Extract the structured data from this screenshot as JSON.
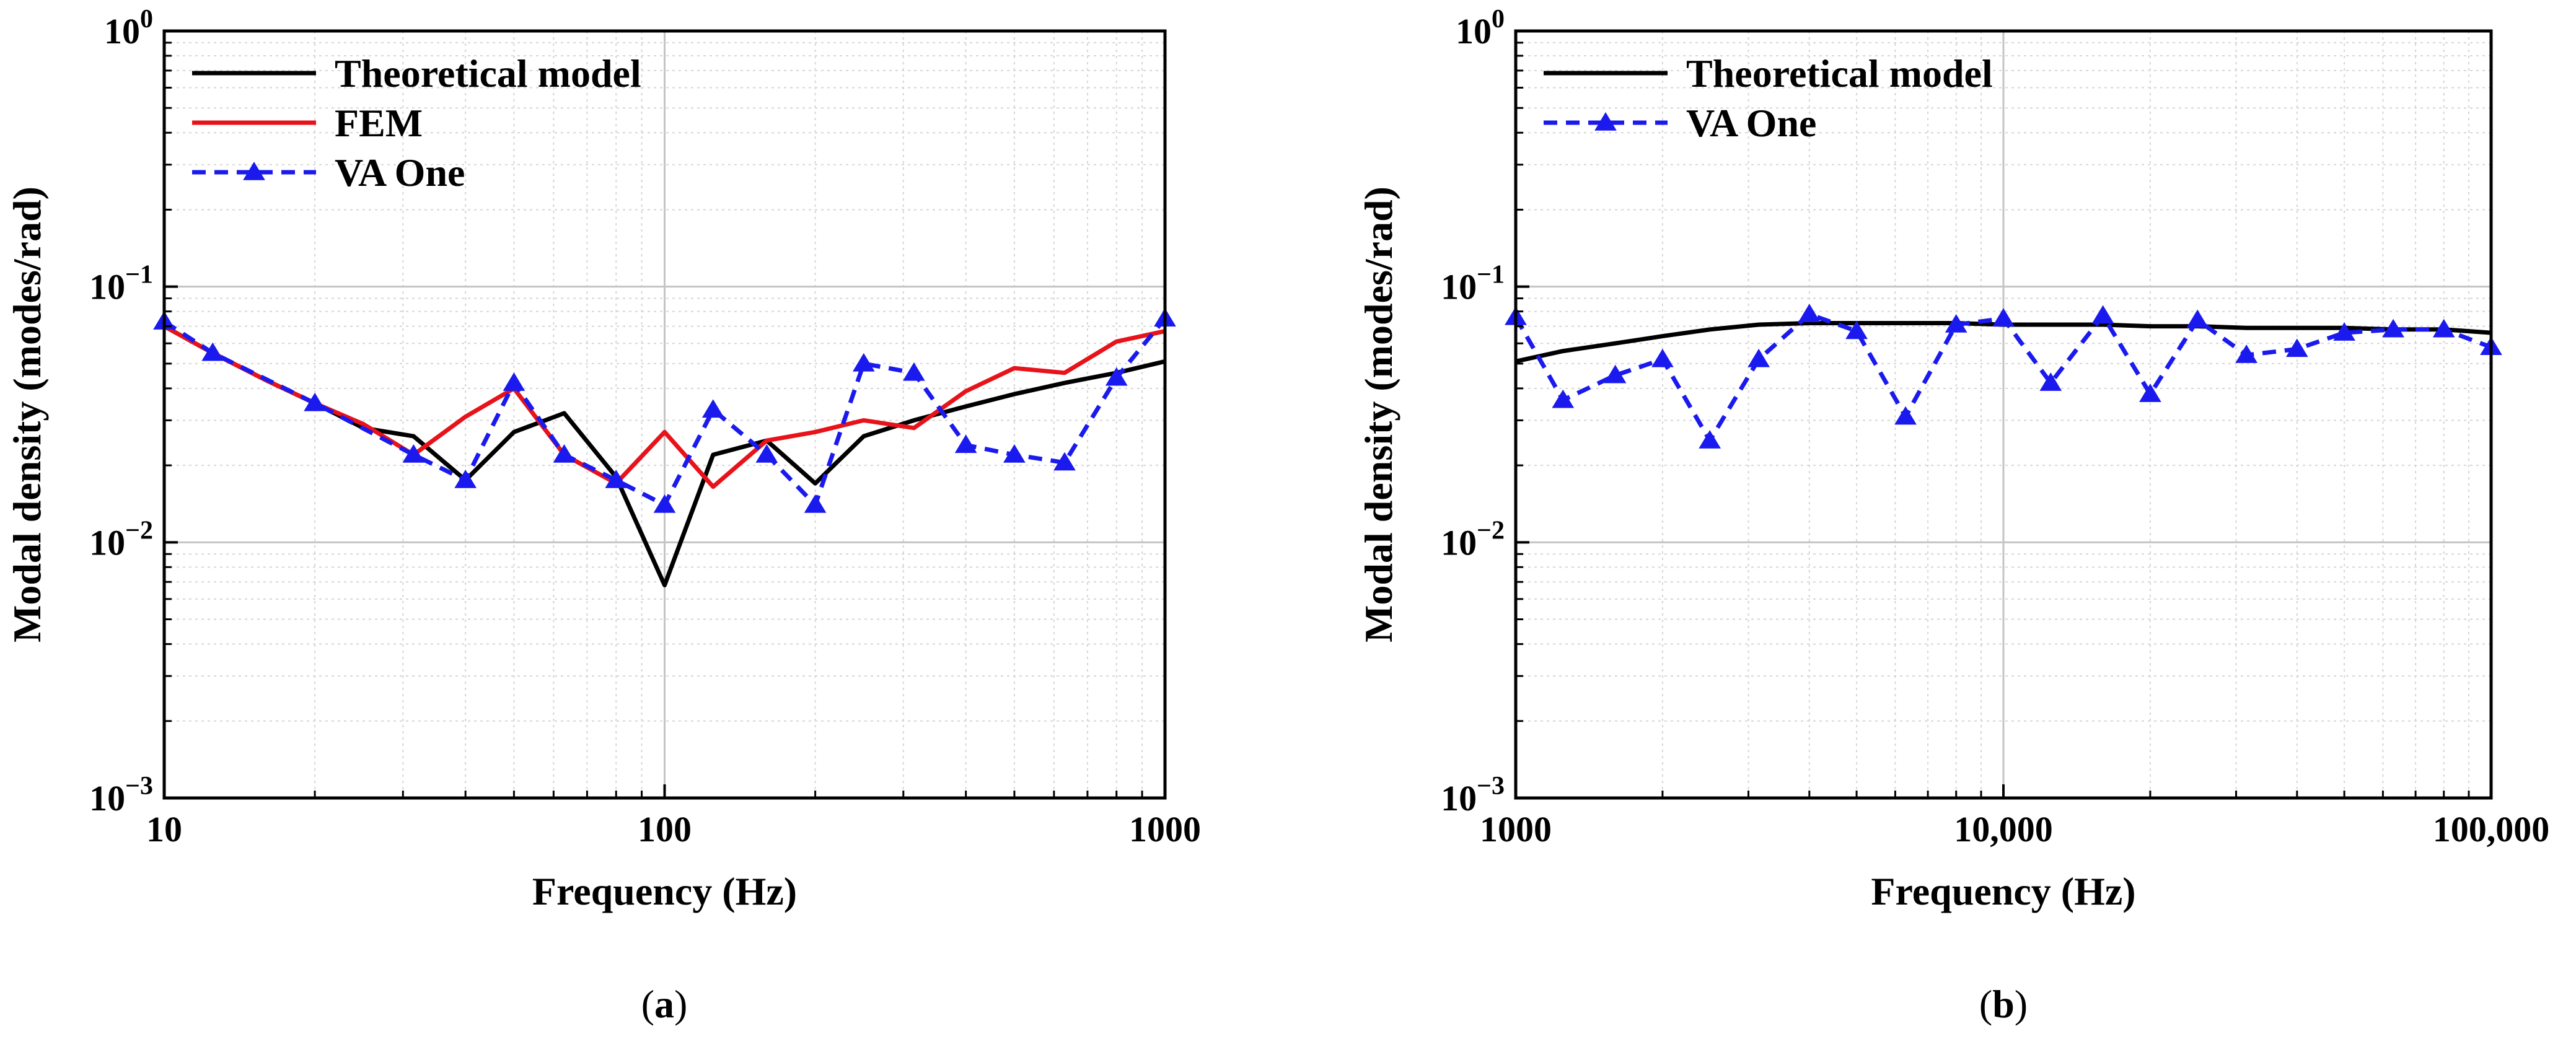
{
  "chart_data": [
    {
      "type": "line",
      "panel_label": "a",
      "xscale": "log",
      "yscale": "log",
      "xlim": [
        10,
        1000
      ],
      "ylim": [
        0.001,
        1
      ],
      "xlabel": "Frequency (Hz)",
      "ylabel": "Modal density (modes/rad)",
      "x_ticks": [
        {
          "value": 10,
          "label": "10"
        },
        {
          "value": 100,
          "label": "100"
        },
        {
          "value": 1000,
          "label": "1000"
        }
      ],
      "y_ticks": [
        {
          "value": 0.001,
          "base": "10",
          "exp": "−3"
        },
        {
          "value": 0.01,
          "base": "10",
          "exp": "−2"
        },
        {
          "value": 0.1,
          "base": "10",
          "exp": "−1"
        },
        {
          "value": 1,
          "base": "10",
          "exp": "0"
        }
      ],
      "grid": true,
      "legend_position": "top-left",
      "series": [
        {
          "name": "Theoretical model",
          "color": "#000000",
          "dash": "solid",
          "marker": "none",
          "x": [
            10,
            12.5,
            16,
            20,
            25,
            31.5,
            40,
            50,
            63,
            80,
            100,
            125,
            160,
            200,
            250,
            315,
            400,
            500,
            630,
            800,
            1000
          ],
          "y": [
            0.07,
            0.055,
            0.043,
            0.035,
            0.028,
            0.026,
            0.0175,
            0.027,
            0.032,
            0.018,
            0.0068,
            0.022,
            0.025,
            0.017,
            0.026,
            0.03,
            0.034,
            0.038,
            0.042,
            0.046,
            0.051
          ]
        },
        {
          "name": "FEM",
          "color": "#e8121a",
          "dash": "solid",
          "marker": "none",
          "x": [
            10,
            12.5,
            16,
            20,
            25,
            31.5,
            40,
            50,
            63,
            80,
            100,
            125,
            160,
            200,
            250,
            315,
            400,
            500,
            630,
            800,
            1000
          ],
          "y": [
            0.07,
            0.055,
            0.043,
            0.035,
            0.029,
            0.022,
            0.031,
            0.04,
            0.022,
            0.017,
            0.027,
            0.0165,
            0.025,
            0.027,
            0.03,
            0.028,
            0.039,
            0.048,
            0.046,
            0.061,
            0.067
          ]
        },
        {
          "name": "VA One",
          "color": "#1a1aee",
          "dash": "dashed",
          "marker": "triangle",
          "x": [
            10,
            12.5,
            20,
            31.5,
            40,
            50,
            63,
            80,
            100,
            125,
            160,
            200,
            250,
            315,
            400,
            500,
            630,
            800,
            1000
          ],
          "y": [
            0.073,
            0.055,
            0.035,
            0.022,
            0.0175,
            0.042,
            0.022,
            0.0175,
            0.014,
            0.033,
            0.022,
            0.014,
            0.05,
            0.046,
            0.024,
            0.022,
            0.0205,
            0.044,
            0.075
          ]
        }
      ]
    },
    {
      "type": "line",
      "panel_label": "b",
      "xscale": "log",
      "yscale": "log",
      "xlim": [
        1000,
        100000
      ],
      "ylim": [
        0.001,
        1
      ],
      "xlabel": "Frequency (Hz)",
      "ylabel": "Modal density (modes/rad)",
      "x_ticks": [
        {
          "value": 1000,
          "label": "1000"
        },
        {
          "value": 10000,
          "label": "10,000"
        },
        {
          "value": 100000,
          "label": "100,000"
        }
      ],
      "y_ticks": [
        {
          "value": 0.001,
          "base": "10",
          "exp": "−3"
        },
        {
          "value": 0.01,
          "base": "10",
          "exp": "−2"
        },
        {
          "value": 0.1,
          "base": "10",
          "exp": "−1"
        },
        {
          "value": 1,
          "base": "10",
          "exp": "0"
        }
      ],
      "grid": true,
      "legend_position": "top-left",
      "series": [
        {
          "name": "Theoretical model",
          "color": "#000000",
          "dash": "solid",
          "marker": "none",
          "x": [
            1000,
            1250,
            1600,
            2000,
            2500,
            3150,
            4000,
            5000,
            6300,
            8000,
            10000,
            12500,
            16000,
            20000,
            25000,
            31500,
            40000,
            50000,
            63000,
            80000,
            100000
          ],
          "y": [
            0.051,
            0.056,
            0.06,
            0.064,
            0.068,
            0.071,
            0.072,
            0.072,
            0.072,
            0.072,
            0.071,
            0.071,
            0.071,
            0.07,
            0.07,
            0.069,
            0.069,
            0.069,
            0.068,
            0.068,
            0.066
          ]
        },
        {
          "name": "VA One",
          "color": "#1a1aee",
          "dash": "dashed",
          "marker": "triangle",
          "x": [
            1000,
            1250,
            1600,
            2000,
            2500,
            3150,
            4000,
            5000,
            6300,
            8000,
            10000,
            12500,
            16000,
            20000,
            25000,
            31500,
            40000,
            50000,
            63000,
            80000,
            100000
          ],
          "y": [
            0.076,
            0.036,
            0.045,
            0.052,
            0.025,
            0.052,
            0.078,
            0.067,
            0.031,
            0.071,
            0.075,
            0.042,
            0.077,
            0.038,
            0.074,
            0.054,
            0.057,
            0.066,
            0.068,
            0.068,
            0.058
          ]
        }
      ]
    }
  ]
}
